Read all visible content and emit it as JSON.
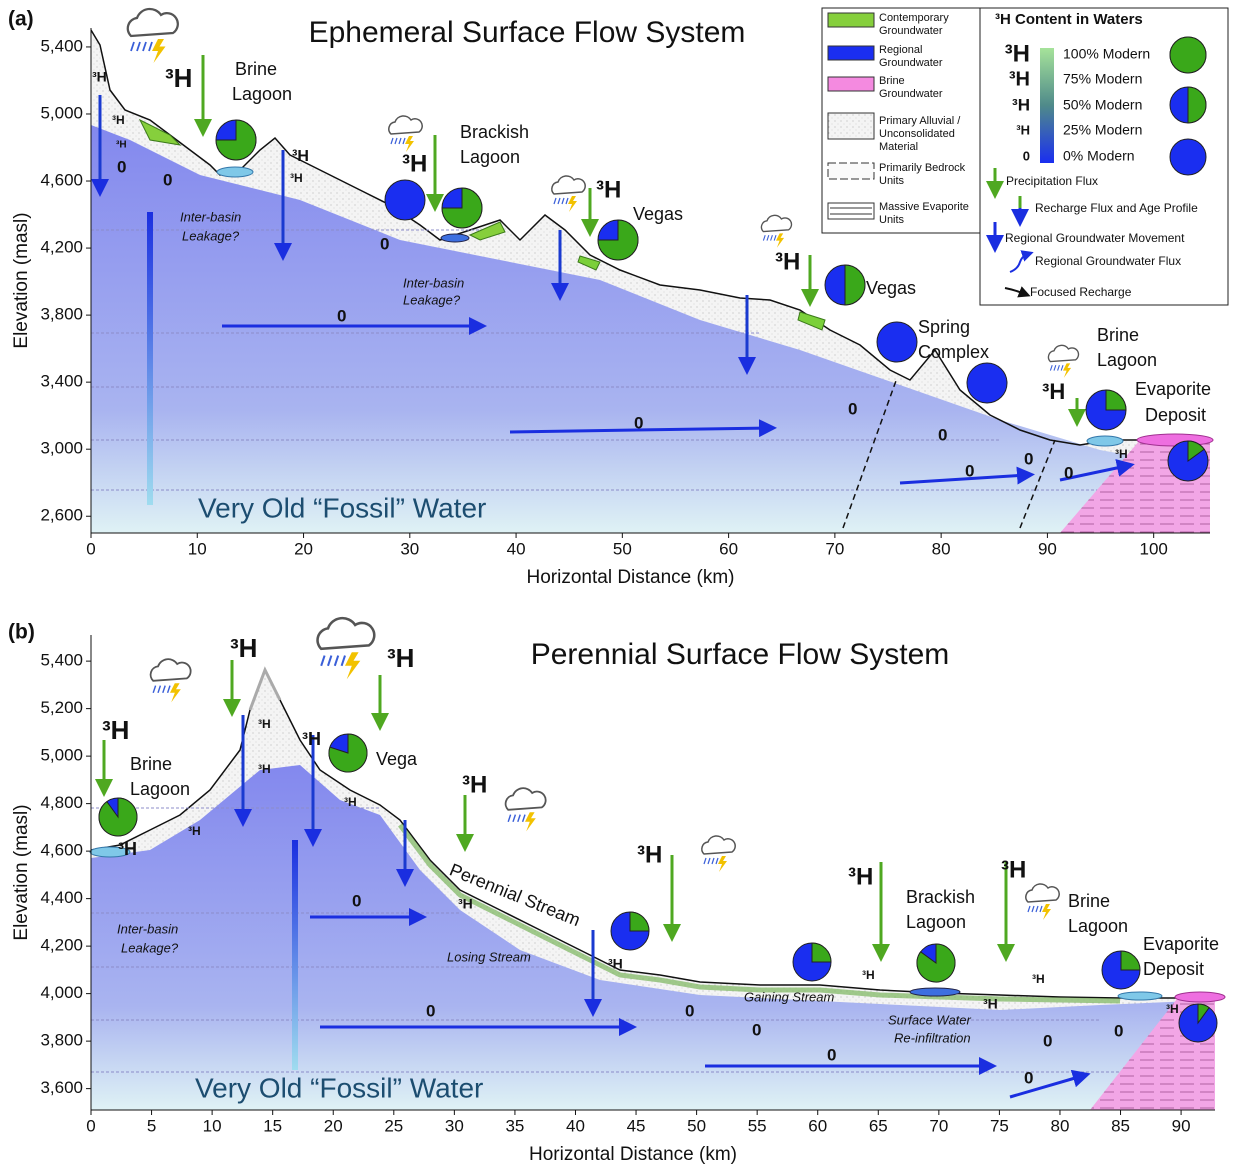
{
  "panel_a": {
    "label": "(a)",
    "title": "Ephemeral Surface Flow System",
    "x_label": "Horizontal Distance (km)",
    "y_label": "Elevation (masl)",
    "xlim": [
      0,
      105.3
    ],
    "ylim": [
      2500,
      5513
    ],
    "xticks": [
      0,
      10,
      20,
      30,
      40,
      50,
      60,
      70,
      80,
      90,
      100
    ],
    "yticks": [
      {
        "value": 2600,
        "label": "2,600"
      },
      {
        "value": 3000,
        "label": "3,000"
      },
      {
        "value": 3400,
        "label": "3,400"
      },
      {
        "value": 3800,
        "label": "3,800"
      },
      {
        "value": 4200,
        "label": "4,200"
      },
      {
        "value": 4600,
        "label": "4,600"
      },
      {
        "value": 5000,
        "label": "5,000"
      },
      {
        "value": 5400,
        "label": "5,400"
      }
    ],
    "labels": [
      "Brine",
      "Lagoon",
      "Brackish",
      "Lagoon",
      "Vegas",
      "Vegas",
      "Spring",
      "Complex",
      "Brine",
      "Lagoon",
      "Evaporite",
      "Deposit",
      "Inter-basin",
      "Leakage?",
      "Inter-basin",
      "Leakage?",
      "Very Old “Fossil” Water"
    ],
    "tritium": [
      "³H",
      "³H",
      "³H",
      "³H",
      "³H",
      "³H",
      "³H",
      "³H",
      "³H",
      "³H",
      "³H"
    ],
    "zeros": [
      "0",
      "0",
      "0",
      "0",
      "0",
      "0",
      "0",
      "0",
      "0",
      "0"
    ]
  },
  "panel_b": {
    "label": "(b)",
    "title": "Perennial Surface Flow System",
    "x_label": "Horizontal Distance (km)",
    "y_label": "Elevation (masl)",
    "xlim": [
      0,
      92.8
    ],
    "ylim": [
      3510,
      5510
    ],
    "xticks": [
      0,
      5,
      10,
      15,
      20,
      25,
      30,
      35,
      40,
      45,
      50,
      55,
      60,
      65,
      70,
      75,
      80,
      85,
      90
    ],
    "yticks": [
      {
        "value": 3600,
        "label": "3,600"
      },
      {
        "value": 3800,
        "label": "3,800"
      },
      {
        "value": 4000,
        "label": "4,000"
      },
      {
        "value": 4200,
        "label": "4,200"
      },
      {
        "value": 4400,
        "label": "4,400"
      },
      {
        "value": 4600,
        "label": "4,600"
      },
      {
        "value": 4800,
        "label": "4,800"
      },
      {
        "value": 5000,
        "label": "5,000"
      },
      {
        "value": 5200,
        "label": "5,200"
      },
      {
        "value": 5400,
        "label": "5,400"
      }
    ],
    "labels": [
      "Brine",
      "Lagoon",
      "Vega",
      "Perennial Stream",
      "Brackish",
      "Lagoon",
      "Brine",
      "Lagoon",
      "Evaporite",
      "Deposit",
      "Inter-basin",
      "Leakage?",
      "Losing Stream",
      "Gaining Stream",
      "Surface Water",
      "Re-infiltration",
      "Very Old “Fossil” Water"
    ],
    "tritium": [
      "³H",
      "³H",
      "³H",
      "³H",
      "³H",
      "³H",
      "³H",
      "³H",
      "³H",
      "³H",
      "³H",
      "³H",
      "³H",
      "³H",
      "³H",
      "³H",
      "³H",
      "³H",
      "³H"
    ],
    "zeros": [
      "0",
      "0",
      "0",
      "0",
      "0",
      "0",
      "0",
      "0"
    ]
  },
  "legend": {
    "units": [
      "Contemporary",
      "Groundwater",
      "Regional",
      "Groundwater",
      "Brine",
      "Groundwater",
      "Primary Alluvial /",
      "Unconsolidated",
      "Material",
      "Primarily Bedrock",
      "Units",
      "Massive Evaporite",
      "Units"
    ],
    "tritium_title": "³H Content in Waters",
    "scale_symbols": [
      "³H",
      "³H",
      "³H",
      "³H",
      "0"
    ],
    "scale_labels": [
      "100% Modern",
      "75% Modern",
      "50% Modern",
      "25% Modern",
      "0% Modern"
    ],
    "fluxes": [
      "Precipitation Flux",
      "Recharge Flux and Age Profile",
      "Regional Groundwater Movement",
      "Regional Groundwater Flux",
      "Focused Recharge"
    ]
  }
}
